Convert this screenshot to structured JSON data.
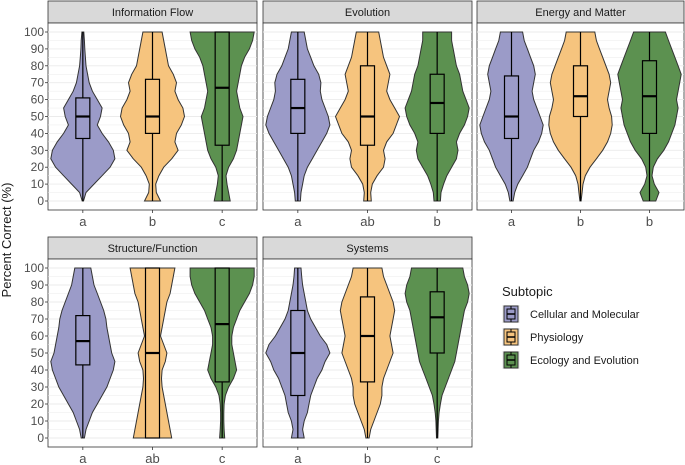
{
  "chart_data": {
    "type": "violin",
    "ylabel": "Percent Correct (%)",
    "yticks": [
      0,
      10,
      20,
      30,
      40,
      50,
      60,
      70,
      80,
      90,
      100
    ],
    "ylim": [
      0,
      100
    ],
    "legend": {
      "title": "Subtopic",
      "position": "right",
      "entries": [
        {
          "name": "Cellular and Molecular",
          "color": "#9b9bc8"
        },
        {
          "name": "Physiology",
          "color": "#f6c47e"
        },
        {
          "name": "Ecology and Evolution",
          "color": "#5c9150"
        }
      ]
    },
    "panels": [
      {
        "title": "Information Flow",
        "categories": [
          "a",
          "b",
          "c"
        ],
        "boxes": [
          {
            "q1": 37,
            "median": 50,
            "q3": 61,
            "min": 0,
            "max": 100
          },
          {
            "q1": 40,
            "median": 50,
            "q3": 72,
            "min": 0,
            "max": 100
          },
          {
            "q1": 33,
            "median": 67,
            "q3": 100,
            "min": 0,
            "max": 100
          }
        ]
      },
      {
        "title": "Evolution",
        "categories": [
          "a",
          "ab",
          "b"
        ],
        "boxes": [
          {
            "q1": 40,
            "median": 55,
            "q3": 72,
            "min": 0,
            "max": 100
          },
          {
            "q1": 33,
            "median": 50,
            "q3": 80,
            "min": 0,
            "max": 100
          },
          {
            "q1": 40,
            "median": 58,
            "q3": 75,
            "min": 0,
            "max": 100
          }
        ]
      },
      {
        "title": "Energy and Matter",
        "categories": [
          "a",
          "b",
          "b"
        ],
        "boxes": [
          {
            "q1": 37,
            "median": 50,
            "q3": 74,
            "min": 0,
            "max": 100
          },
          {
            "q1": 50,
            "median": 62,
            "q3": 80,
            "min": 0,
            "max": 100
          },
          {
            "q1": 40,
            "median": 62,
            "q3": 83,
            "min": 0,
            "max": 100
          }
        ]
      },
      {
        "title": "Structure/Function",
        "categories": [
          "a",
          "ab",
          "c"
        ],
        "boxes": [
          {
            "q1": 43,
            "median": 57,
            "q3": 72,
            "min": 0,
            "max": 100
          },
          {
            "q1": 0,
            "median": 50,
            "q3": 100,
            "min": 0,
            "max": 100
          },
          {
            "q1": 33,
            "median": 67,
            "q3": 100,
            "min": 0,
            "max": 100
          }
        ]
      },
      {
        "title": "Systems",
        "categories": [
          "a",
          "b",
          "c"
        ],
        "boxes": [
          {
            "q1": 25,
            "median": 50,
            "q3": 75,
            "min": 0,
            "max": 100
          },
          {
            "q1": 33,
            "median": 60,
            "q3": 83,
            "min": 0,
            "max": 100
          },
          {
            "q1": 50,
            "median": 71,
            "q3": 86,
            "min": 0,
            "max": 100
          }
        ]
      }
    ]
  }
}
